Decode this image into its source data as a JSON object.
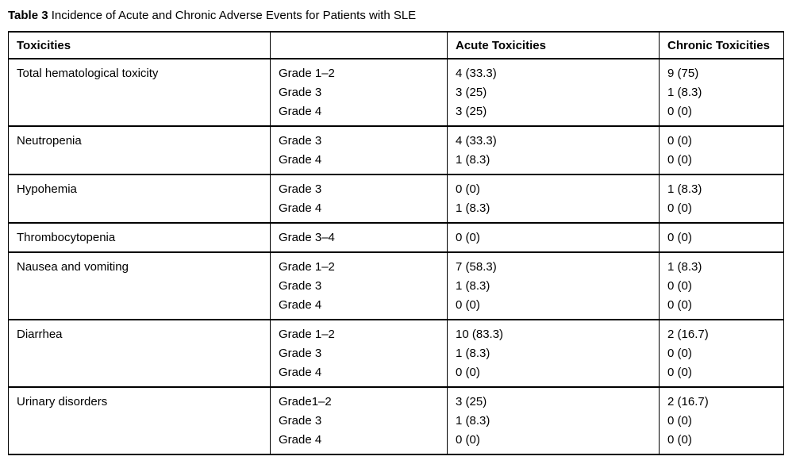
{
  "title": {
    "label": "Table 3",
    "text": "Incidence of Acute and Chronic Adverse Events for Patients with SLE"
  },
  "table": {
    "headers": [
      "Toxicities",
      "",
      "Acute Toxicities",
      "Chronic Toxicities"
    ],
    "sections": [
      {
        "toxicity": "Total hematological toxicity",
        "rows": [
          {
            "grade": "Grade 1–2",
            "acute": "4 (33.3)",
            "chronic": "9 (75)"
          },
          {
            "grade": "Grade 3",
            "acute": "3 (25)",
            "chronic": "1 (8.3)"
          },
          {
            "grade": "Grade 4",
            "acute": "3 (25)",
            "chronic": "0 (0)"
          }
        ]
      },
      {
        "toxicity": "Neutropenia",
        "rows": [
          {
            "grade": "Grade 3",
            "acute": "4 (33.3)",
            "chronic": "0 (0)"
          },
          {
            "grade": "Grade 4",
            "acute": "1 (8.3)",
            "chronic": "0 (0)"
          }
        ]
      },
      {
        "toxicity": "Hypohemia",
        "rows": [
          {
            "grade": "Grade 3",
            "acute": "0 (0)",
            "chronic": "1 (8.3)"
          },
          {
            "grade": "Grade 4",
            "acute": "1 (8.3)",
            "chronic": "0 (0)"
          }
        ]
      },
      {
        "toxicity": "Thrombocytopenia",
        "rows": [
          {
            "grade": "Grade 3–4",
            "acute": "0 (0)",
            "chronic": "0 (0)"
          }
        ]
      },
      {
        "toxicity": "Nausea and vomiting",
        "rows": [
          {
            "grade": "Grade 1–2",
            "acute": "7 (58.3)",
            "chronic": "1 (8.3)"
          },
          {
            "grade": "Grade 3",
            "acute": "1 (8.3)",
            "chronic": "0 (0)"
          },
          {
            "grade": "Grade 4",
            "acute": "0 (0)",
            "chronic": "0 (0)"
          }
        ]
      },
      {
        "toxicity": "Diarrhea",
        "rows": [
          {
            "grade": "Grade 1–2",
            "acute": "10 (83.3)",
            "chronic": "2 (16.7)"
          },
          {
            "grade": "Grade 3",
            "acute": "1 (8.3)",
            "chronic": "0 (0)"
          },
          {
            "grade": "Grade 4",
            "acute": "0 (0)",
            "chronic": "0 (0)"
          }
        ]
      },
      {
        "toxicity": "Urinary disorders",
        "rows": [
          {
            "grade": "Grade1–2",
            "acute": "3 (25)",
            "chronic": "2 (16.7)"
          },
          {
            "grade": "Grade 3",
            "acute": "1 (8.3)",
            "chronic": "0 (0)"
          },
          {
            "grade": "Grade 4",
            "acute": "0 (0)",
            "chronic": "0 (0)"
          }
        ]
      }
    ]
  }
}
